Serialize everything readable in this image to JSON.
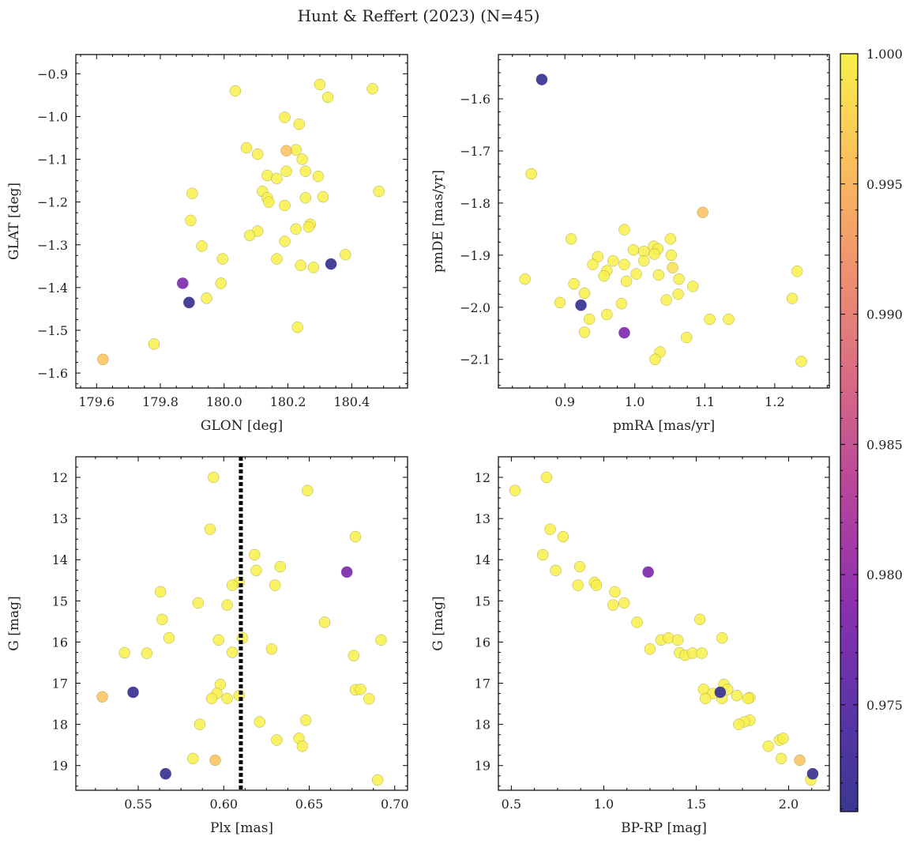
{
  "figure": {
    "suptitle": "Hunt & Reffert (2023) (N=45)"
  },
  "colorbar": {
    "colormap": "plasma",
    "vmin": 0.9709,
    "vmax": 1.0,
    "ticks": [
      0.975,
      0.98,
      0.985,
      0.99,
      0.995,
      1.0
    ],
    "tick_labels": [
      "0.975",
      "0.980",
      "0.985",
      "0.990",
      "0.995",
      "1.000"
    ]
  },
  "chart_data": [
    {
      "type": "scatter",
      "id": "glon-glat",
      "xlabel": "GLON [deg]",
      "ylabel": "GLAT [deg]",
      "xlim": [
        179.535,
        180.575
      ],
      "ylim": [
        -1.635,
        -0.855
      ],
      "xticks": [
        179.6,
        179.8,
        180.0,
        180.2,
        180.4
      ],
      "xtick_labels": [
        "179.6",
        "179.8",
        "180.0",
        "180.2",
        "180.4"
      ],
      "yticks": [
        -1.6,
        -1.5,
        -1.4,
        -1.3,
        -1.2,
        -1.1,
        -1.0,
        -0.9
      ],
      "ytick_labels": [
        "−1.6",
        "−1.5",
        "−1.4",
        "−1.3",
        "−1.2",
        "−1.1",
        "−1.0",
        "−0.9"
      ],
      "points": [
        {
          "x": 180.035,
          "y": -0.94,
          "c": 1.0
        },
        {
          "x": 180.3,
          "y": -0.925,
          "c": 1.0
        },
        {
          "x": 180.465,
          "y": -0.935,
          "c": 1.0
        },
        {
          "x": 180.325,
          "y": -0.955,
          "c": 1.0
        },
        {
          "x": 180.19,
          "y": -1.002,
          "c": 1.0
        },
        {
          "x": 180.235,
          "y": -1.018,
          "c": 1.0
        },
        {
          "x": 180.07,
          "y": -1.073,
          "c": 1.0
        },
        {
          "x": 180.105,
          "y": -1.088,
          "c": 1.0
        },
        {
          "x": 180.195,
          "y": -1.08,
          "c": 0.996
        },
        {
          "x": 180.225,
          "y": -1.078,
          "c": 1.0
        },
        {
          "x": 180.245,
          "y": -1.1,
          "c": 1.0
        },
        {
          "x": 180.255,
          "y": -1.128,
          "c": 1.0
        },
        {
          "x": 180.195,
          "y": -1.128,
          "c": 1.0
        },
        {
          "x": 180.135,
          "y": -1.138,
          "c": 1.0
        },
        {
          "x": 180.165,
          "y": -1.145,
          "c": 1.0
        },
        {
          "x": 180.295,
          "y": -1.14,
          "c": 1.0
        },
        {
          "x": 180.12,
          "y": -1.175,
          "c": 1.0
        },
        {
          "x": 180.485,
          "y": -1.175,
          "c": 1.0
        },
        {
          "x": 179.9,
          "y": -1.18,
          "c": 1.0
        },
        {
          "x": 180.135,
          "y": -1.19,
          "c": 1.0
        },
        {
          "x": 180.14,
          "y": -1.2,
          "c": 1.0
        },
        {
          "x": 180.255,
          "y": -1.19,
          "c": 1.0
        },
        {
          "x": 180.31,
          "y": -1.188,
          "c": 1.0
        },
        {
          "x": 180.19,
          "y": -1.208,
          "c": 1.0
        },
        {
          "x": 179.895,
          "y": -1.243,
          "c": 1.0
        },
        {
          "x": 180.27,
          "y": -1.252,
          "c": 1.0
        },
        {
          "x": 180.265,
          "y": -1.258,
          "c": 1.0
        },
        {
          "x": 180.225,
          "y": -1.263,
          "c": 1.0
        },
        {
          "x": 180.105,
          "y": -1.268,
          "c": 1.0
        },
        {
          "x": 180.08,
          "y": -1.278,
          "c": 1.0
        },
        {
          "x": 180.19,
          "y": -1.292,
          "c": 1.0
        },
        {
          "x": 179.93,
          "y": -1.303,
          "c": 1.0
        },
        {
          "x": 180.38,
          "y": -1.323,
          "c": 1.0
        },
        {
          "x": 179.995,
          "y": -1.333,
          "c": 1.0
        },
        {
          "x": 180.165,
          "y": -1.333,
          "c": 1.0
        },
        {
          "x": 180.335,
          "y": -1.345,
          "c": 0.9712
        },
        {
          "x": 180.24,
          "y": -1.348,
          "c": 1.0
        },
        {
          "x": 180.28,
          "y": -1.353,
          "c": 1.0
        },
        {
          "x": 179.87,
          "y": -1.39,
          "c": 0.978
        },
        {
          "x": 179.99,
          "y": -1.39,
          "c": 1.0
        },
        {
          "x": 179.945,
          "y": -1.425,
          "c": 1.0
        },
        {
          "x": 179.89,
          "y": -1.435,
          "c": 0.9712
        },
        {
          "x": 180.23,
          "y": -1.493,
          "c": 1.0
        },
        {
          "x": 179.78,
          "y": -1.532,
          "c": 1.0
        },
        {
          "x": 179.62,
          "y": -1.568,
          "c": 0.996
        }
      ]
    },
    {
      "type": "scatter",
      "id": "pmra-pmde",
      "xlabel": "pmRA [mas/yr]",
      "ylabel": "pmDE [mas/yr]",
      "xlim": [
        0.805,
        1.278
      ],
      "ylim": [
        -2.155,
        -1.515
      ],
      "xticks": [
        0.9,
        1.0,
        1.1,
        1.2
      ],
      "xtick_labels": [
        "0.9",
        "1.0",
        "1.1",
        "1.2"
      ],
      "yticks": [
        -2.1,
        -2.0,
        -1.9,
        -1.8,
        -1.7,
        -1.6
      ],
      "ytick_labels": [
        "−2.1",
        "−2.0",
        "−1.9",
        "−1.8",
        "−1.7",
        "−1.6"
      ],
      "points": [
        {
          "x": 0.867,
          "y": -1.563,
          "c": 0.9712
        },
        {
          "x": 0.852,
          "y": -1.744,
          "c": 1.0
        },
        {
          "x": 1.097,
          "y": -1.818,
          "c": 0.996
        },
        {
          "x": 0.985,
          "y": -1.851,
          "c": 1.0
        },
        {
          "x": 0.909,
          "y": -1.869,
          "c": 1.0
        },
        {
          "x": 1.051,
          "y": -1.869,
          "c": 1.0
        },
        {
          "x": 1.027,
          "y": -1.883,
          "c": 1.0
        },
        {
          "x": 0.998,
          "y": -1.89,
          "c": 1.0
        },
        {
          "x": 1.013,
          "y": -1.893,
          "c": 1.0
        },
        {
          "x": 1.033,
          "y": -1.888,
          "c": 1.0
        },
        {
          "x": 1.028,
          "y": -1.898,
          "c": 1.0
        },
        {
          "x": 1.052,
          "y": -1.9,
          "c": 1.0
        },
        {
          "x": 0.947,
          "y": -1.903,
          "c": 1.0
        },
        {
          "x": 0.969,
          "y": -1.911,
          "c": 1.0
        },
        {
          "x": 1.013,
          "y": -1.911,
          "c": 1.0
        },
        {
          "x": 0.94,
          "y": -1.918,
          "c": 1.0
        },
        {
          "x": 0.985,
          "y": -1.918,
          "c": 1.0
        },
        {
          "x": 1.054,
          "y": -1.924,
          "c": 0.9985
        },
        {
          "x": 0.96,
          "y": -1.93,
          "c": 1.0
        },
        {
          "x": 1.232,
          "y": -1.931,
          "c": 1.0
        },
        {
          "x": 1.002,
          "y": -1.936,
          "c": 1.0
        },
        {
          "x": 0.956,
          "y": -1.94,
          "c": 1.0
        },
        {
          "x": 1.034,
          "y": -1.938,
          "c": 1.0
        },
        {
          "x": 0.843,
          "y": -1.946,
          "c": 1.0
        },
        {
          "x": 1.063,
          "y": -1.946,
          "c": 1.0
        },
        {
          "x": 0.988,
          "y": -1.95,
          "c": 1.0
        },
        {
          "x": 1.083,
          "y": -1.96,
          "c": 1.0
        },
        {
          "x": 0.928,
          "y": -1.973,
          "c": 1.0
        },
        {
          "x": 1.062,
          "y": -1.975,
          "c": 1.0
        },
        {
          "x": 1.225,
          "y": -1.983,
          "c": 1.0
        },
        {
          "x": 1.045,
          "y": -1.986,
          "c": 1.0
        },
        {
          "x": 0.893,
          "y": -1.991,
          "c": 1.0
        },
        {
          "x": 0.981,
          "y": -1.993,
          "c": 1.0
        },
        {
          "x": 0.923,
          "y": -1.996,
          "c": 0.9712
        },
        {
          "x": 0.96,
          "y": -2.014,
          "c": 1.0
        },
        {
          "x": 0.935,
          "y": -2.023,
          "c": 1.0
        },
        {
          "x": 1.107,
          "y": -2.023,
          "c": 1.0
        },
        {
          "x": 1.134,
          "y": -2.023,
          "c": 1.0
        },
        {
          "x": 0.928,
          "y": -2.048,
          "c": 1.0
        },
        {
          "x": 0.985,
          "y": -2.049,
          "c": 0.978
        },
        {
          "x": 1.074,
          "y": -2.058,
          "c": 1.0
        },
        {
          "x": 1.036,
          "y": -2.086,
          "c": 1.0
        },
        {
          "x": 1.029,
          "y": -2.1,
          "c": 1.0
        },
        {
          "x": 1.238,
          "y": -2.104,
          "c": 1.0
        },
        {
          "x": 0.913,
          "y": -1.955,
          "c": 1.0
        }
      ]
    },
    {
      "type": "scatter",
      "id": "plx-g",
      "xlabel": "Plx [mas]",
      "ylabel": "G [mag]",
      "xlim": [
        0.5135,
        0.7075
      ],
      "ylim": [
        19.6,
        11.5
      ],
      "y_inverted": true,
      "xticks": [
        0.55,
        0.6,
        0.65,
        0.7
      ],
      "xtick_labels": [
        "0.55",
        "0.60",
        "0.65",
        "0.70"
      ],
      "yticks": [
        12,
        13,
        14,
        15,
        16,
        17,
        18,
        19
      ],
      "ytick_labels": [
        "12",
        "13",
        "14",
        "15",
        "16",
        "17",
        "18",
        "19"
      ],
      "vline": {
        "x": 0.61,
        "style": "dotted",
        "color": "#000000"
      },
      "points": [
        {
          "x": 0.594,
          "y": 12.0,
          "c": 1.0
        },
        {
          "x": 0.649,
          "y": 12.32,
          "c": 1.0
        },
        {
          "x": 0.592,
          "y": 13.26,
          "c": 1.0
        },
        {
          "x": 0.677,
          "y": 13.44,
          "c": 1.0
        },
        {
          "x": 0.618,
          "y": 13.88,
          "c": 1.0
        },
        {
          "x": 0.633,
          "y": 14.17,
          "c": 1.0
        },
        {
          "x": 0.619,
          "y": 14.26,
          "c": 1.0
        },
        {
          "x": 0.672,
          "y": 14.3,
          "c": 0.978
        },
        {
          "x": 0.609,
          "y": 14.55,
          "c": 1.0
        },
        {
          "x": 0.605,
          "y": 14.62,
          "c": 1.0
        },
        {
          "x": 0.63,
          "y": 14.62,
          "c": 1.0
        },
        {
          "x": 0.563,
          "y": 14.78,
          "c": 1.0
        },
        {
          "x": 0.585,
          "y": 15.05,
          "c": 1.0
        },
        {
          "x": 0.602,
          "y": 15.1,
          "c": 1.0
        },
        {
          "x": 0.564,
          "y": 15.45,
          "c": 1.0
        },
        {
          "x": 0.659,
          "y": 15.52,
          "c": 1.0
        },
        {
          "x": 0.568,
          "y": 15.9,
          "c": 1.0
        },
        {
          "x": 0.611,
          "y": 15.9,
          "c": 1.0
        },
        {
          "x": 0.597,
          "y": 15.95,
          "c": 1.0
        },
        {
          "x": 0.692,
          "y": 15.95,
          "c": 1.0
        },
        {
          "x": 0.628,
          "y": 16.17,
          "c": 1.0
        },
        {
          "x": 0.542,
          "y": 16.26,
          "c": 1.0
        },
        {
          "x": 0.555,
          "y": 16.27,
          "c": 1.0
        },
        {
          "x": 0.605,
          "y": 16.25,
          "c": 1.0
        },
        {
          "x": 0.676,
          "y": 16.33,
          "c": 1.0
        },
        {
          "x": 0.598,
          "y": 17.03,
          "c": 1.0
        },
        {
          "x": 0.677,
          "y": 17.16,
          "c": 1.0
        },
        {
          "x": 0.68,
          "y": 17.15,
          "c": 1.0
        },
        {
          "x": 0.547,
          "y": 17.22,
          "c": 0.9712
        },
        {
          "x": 0.596,
          "y": 17.25,
          "c": 1.0
        },
        {
          "x": 0.609,
          "y": 17.3,
          "c": 1.0
        },
        {
          "x": 0.529,
          "y": 17.33,
          "c": 0.996
        },
        {
          "x": 0.593,
          "y": 17.37,
          "c": 1.0
        },
        {
          "x": 0.602,
          "y": 17.37,
          "c": 1.0
        },
        {
          "x": 0.685,
          "y": 17.38,
          "c": 1.0
        },
        {
          "x": 0.648,
          "y": 17.9,
          "c": 1.0
        },
        {
          "x": 0.621,
          "y": 17.94,
          "c": 1.0
        },
        {
          "x": 0.586,
          "y": 18.0,
          "c": 1.0
        },
        {
          "x": 0.631,
          "y": 18.38,
          "c": 1.0
        },
        {
          "x": 0.644,
          "y": 18.34,
          "c": 1.0
        },
        {
          "x": 0.646,
          "y": 18.53,
          "c": 1.0
        },
        {
          "x": 0.582,
          "y": 18.83,
          "c": 1.0
        },
        {
          "x": 0.595,
          "y": 18.87,
          "c": 0.996
        },
        {
          "x": 0.566,
          "y": 19.2,
          "c": 0.9712
        },
        {
          "x": 0.69,
          "y": 19.35,
          "c": 1.0
        }
      ]
    },
    {
      "type": "scatter",
      "id": "bprp-g",
      "xlabel": "BP-RP [mag]",
      "ylabel": "G [mag]",
      "xlim": [
        0.43,
        2.22
      ],
      "ylim": [
        19.6,
        11.5
      ],
      "y_inverted": true,
      "xticks": [
        0.5,
        1.0,
        1.5,
        2.0
      ],
      "xtick_labels": [
        "0.5",
        "1.0",
        "1.5",
        "2.0"
      ],
      "yticks": [
        12,
        13,
        14,
        15,
        16,
        17,
        18,
        19
      ],
      "ytick_labels": [
        "12",
        "13",
        "14",
        "15",
        "16",
        "17",
        "18",
        "19"
      ],
      "points": [
        {
          "x": 0.52,
          "y": 12.32,
          "c": 1.0
        },
        {
          "x": 0.69,
          "y": 12.0,
          "c": 1.0
        },
        {
          "x": 0.71,
          "y": 13.26,
          "c": 1.0
        },
        {
          "x": 0.78,
          "y": 13.44,
          "c": 1.0
        },
        {
          "x": 0.67,
          "y": 13.88,
          "c": 1.0
        },
        {
          "x": 0.74,
          "y": 14.26,
          "c": 1.0
        },
        {
          "x": 0.87,
          "y": 14.17,
          "c": 1.0
        },
        {
          "x": 1.24,
          "y": 14.3,
          "c": 0.978
        },
        {
          "x": 0.95,
          "y": 14.55,
          "c": 1.0
        },
        {
          "x": 0.86,
          "y": 14.62,
          "c": 1.0
        },
        {
          "x": 0.96,
          "y": 14.62,
          "c": 1.0
        },
        {
          "x": 1.06,
          "y": 14.78,
          "c": 1.0
        },
        {
          "x": 1.05,
          "y": 15.1,
          "c": 1.0
        },
        {
          "x": 1.11,
          "y": 15.05,
          "c": 1.0
        },
        {
          "x": 1.52,
          "y": 15.45,
          "c": 1.0
        },
        {
          "x": 1.18,
          "y": 15.52,
          "c": 1.0
        },
        {
          "x": 1.31,
          "y": 15.95,
          "c": 1.0
        },
        {
          "x": 1.35,
          "y": 15.9,
          "c": 1.0
        },
        {
          "x": 1.4,
          "y": 15.95,
          "c": 1.0
        },
        {
          "x": 1.64,
          "y": 15.9,
          "c": 1.0
        },
        {
          "x": 1.25,
          "y": 16.17,
          "c": 1.0
        },
        {
          "x": 1.41,
          "y": 16.26,
          "c": 1.0
        },
        {
          "x": 1.44,
          "y": 16.32,
          "c": 1.0
        },
        {
          "x": 1.48,
          "y": 16.27,
          "c": 1.0
        },
        {
          "x": 1.53,
          "y": 16.27,
          "c": 1.0
        },
        {
          "x": 1.65,
          "y": 17.03,
          "c": 1.0
        },
        {
          "x": 1.54,
          "y": 17.15,
          "c": 1.0
        },
        {
          "x": 1.67,
          "y": 17.15,
          "c": 1.0
        },
        {
          "x": 1.63,
          "y": 17.22,
          "c": 0.9712
        },
        {
          "x": 1.59,
          "y": 17.25,
          "c": 1.0
        },
        {
          "x": 1.72,
          "y": 17.3,
          "c": 1.0
        },
        {
          "x": 1.55,
          "y": 17.37,
          "c": 1.0
        },
        {
          "x": 1.64,
          "y": 17.37,
          "c": 1.0
        },
        {
          "x": 1.79,
          "y": 17.35,
          "c": 1.0
        },
        {
          "x": 1.78,
          "y": 17.37,
          "c": 1.0
        },
        {
          "x": 1.79,
          "y": 17.9,
          "c": 1.0
        },
        {
          "x": 1.76,
          "y": 17.94,
          "c": 1.0
        },
        {
          "x": 1.73,
          "y": 18.0,
          "c": 1.0
        },
        {
          "x": 1.95,
          "y": 18.38,
          "c": 1.0
        },
        {
          "x": 1.97,
          "y": 18.34,
          "c": 1.0
        },
        {
          "x": 1.89,
          "y": 18.53,
          "c": 1.0
        },
        {
          "x": 1.96,
          "y": 18.83,
          "c": 1.0
        },
        {
          "x": 2.06,
          "y": 18.87,
          "c": 0.996
        },
        {
          "x": 2.13,
          "y": 19.2,
          "c": 0.9712
        },
        {
          "x": 2.12,
          "y": 19.35,
          "c": 1.0
        }
      ]
    }
  ]
}
